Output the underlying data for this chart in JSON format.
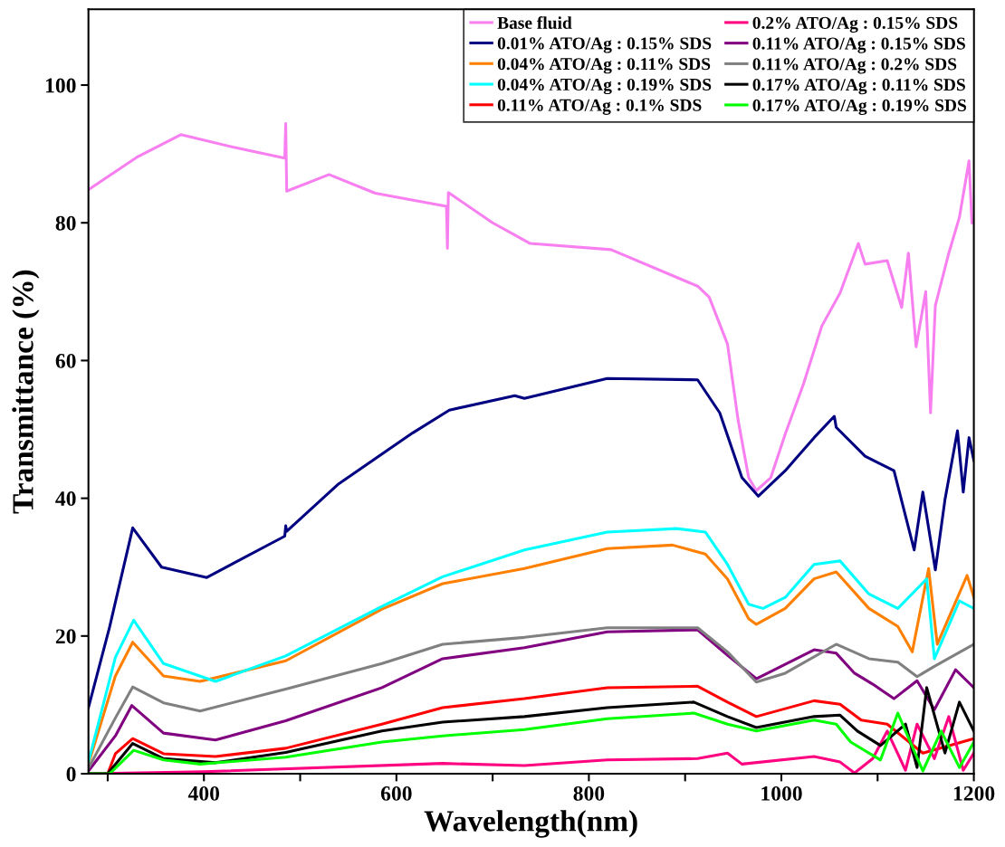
{
  "chart_data": {
    "type": "line",
    "xlabel": "Wavelength(nm)",
    "ylabel": "Transmittance (%)",
    "xlim": [
      280,
      1200
    ],
    "ylim": [
      0,
      111
    ],
    "xticks": [
      {
        "value": 300,
        "label": null
      },
      400,
      {
        "value": 500,
        "label": null
      },
      600,
      {
        "value": 700,
        "label": null
      },
      800,
      {
        "value": 900,
        "label": null
      },
      1000,
      {
        "value": 1100,
        "label": null
      },
      1200
    ],
    "yticks": [
      0,
      20,
      40,
      60,
      80,
      100
    ],
    "grid": false,
    "legend": "top right",
    "marker": "none",
    "line_style": "solid",
    "series": [
      {
        "name": "Base fluid",
        "color": "#f77ff0",
        "x": [
          280,
          330,
          376,
          430,
          484,
          485,
          486,
          530,
          578,
          652,
          653,
          654,
          700,
          739,
          823,
          913,
          925,
          944,
          955,
          966,
          974,
          989,
          1004,
          1023,
          1042,
          1061,
          1080,
          1087,
          1110,
          1125,
          1132,
          1140,
          1150,
          1155,
          1160,
          1174,
          1185,
          1195,
          1198
        ],
        "values": [
          84.8,
          89.5,
          92.8,
          91,
          89.4,
          94.4,
          84.6,
          87,
          84.3,
          82.4,
          76.3,
          84.4,
          80,
          77,
          76.1,
          70.8,
          69.2,
          62.4,
          51.4,
          43,
          41.1,
          43,
          49.3,
          56.6,
          65,
          69.8,
          77,
          74,
          74.5,
          67.7,
          75.6,
          62,
          70,
          52.4,
          68,
          75.6,
          80.8,
          89,
          80
        ]
      },
      {
        "name": "0.01% ATO/Ag : 0.15% SDS",
        "color": "#000080",
        "x": [
          280,
          302,
          326,
          356,
          403,
          484,
          485,
          486,
          540,
          617,
          655,
          723,
          733,
          819,
          913,
          936,
          959,
          976,
          1004,
          1034,
          1055,
          1057,
          1087,
          1117,
          1138,
          1147,
          1160,
          1170,
          1183,
          1189,
          1195,
          1200
        ],
        "values": [
          9.6,
          21.3,
          35.7,
          30,
          28.5,
          34.5,
          36,
          35.2,
          42.1,
          49.5,
          52.8,
          54.9,
          54.5,
          57.4,
          57.2,
          52.4,
          43,
          40.3,
          44,
          48.8,
          51.9,
          50.3,
          46.1,
          44,
          32.5,
          40.9,
          29.6,
          39.8,
          49.8,
          40.9,
          48.8,
          45.5
        ]
      },
      {
        "name": "0.04% ATO/Ag : 0.11% SDS",
        "color": "#ff8000",
        "x": [
          280,
          308,
          326,
          358,
          396,
          485,
          585,
          648,
          733,
          819,
          887,
          921,
          944,
          966,
          974,
          1004,
          1034,
          1057,
          1091,
          1121,
          1136,
          1153,
          1162,
          1193,
          1200
        ],
        "values": [
          1.4,
          14.2,
          19.1,
          14.2,
          13.4,
          16.4,
          23.9,
          27.6,
          29.8,
          32.7,
          33.2,
          31.9,
          28.3,
          22.5,
          21.7,
          24,
          28.3,
          29.3,
          24,
          21.4,
          17.7,
          29.8,
          18.8,
          28.8,
          25.6
        ]
      },
      {
        "name": "0.04% ATO/Ag : 0.19% SDS",
        "color": "#00ffff",
        "x": [
          280,
          308,
          327,
          358,
          412,
          485,
          585,
          648,
          733,
          819,
          891,
          921,
          944,
          966,
          981,
          1004,
          1034,
          1061,
          1091,
          1121,
          1151,
          1159,
          1185,
          1200
        ],
        "values": [
          1.7,
          16.9,
          22.3,
          16,
          13.4,
          17.1,
          24.3,
          28.6,
          32.5,
          35.1,
          35.6,
          35.1,
          30.4,
          24.6,
          24,
          25.6,
          30.4,
          30.9,
          26.1,
          24,
          28.3,
          16.7,
          25.1,
          24
        ]
      },
      {
        "name": "0.11% ATO/Ag : 0.1% SDS",
        "color": "#ff0000",
        "x": [
          280,
          300,
          308,
          326,
          358,
          412,
          485,
          585,
          648,
          733,
          819,
          913,
          944,
          974,
          1034,
          1061,
          1083,
          1110,
          1147,
          1200
        ],
        "values": [
          0,
          0,
          2.9,
          5.1,
          2.9,
          2.5,
          3.7,
          7.2,
          9.6,
          10.9,
          12.5,
          12.7,
          10.4,
          8.3,
          10.6,
          10.1,
          7.8,
          7.2,
          3,
          5.1
        ]
      },
      {
        "name": "0.2% ATO/Ag : 0.15% SDS",
        "color": "#ff0080",
        "x": [
          280,
          400,
          648,
          733,
          819,
          913,
          944,
          959,
          1034,
          1061,
          1076,
          1095,
          1110,
          1129,
          1141,
          1159,
          1174,
          1189,
          1200
        ],
        "values": [
          0,
          0.3,
          1.5,
          1.2,
          2,
          2.2,
          3,
          1.4,
          2.5,
          1.7,
          0.1,
          2.2,
          6.2,
          0.5,
          7.2,
          2.2,
          8.3,
          0.5,
          3
        ]
      },
      {
        "name": "0.11% ATO/Ag : 0.15% SDS",
        "color": "#800080",
        "x": [
          280,
          308,
          325,
          358,
          412,
          485,
          585,
          648,
          733,
          819,
          913,
          944,
          974,
          1034,
          1057,
          1076,
          1095,
          1117,
          1141,
          1159,
          1181,
          1200
        ],
        "values": [
          0.4,
          5.5,
          9.9,
          5.9,
          4.9,
          7.7,
          12.5,
          16.7,
          18.3,
          20.6,
          20.9,
          17.2,
          13.8,
          18,
          17.5,
          14.6,
          13,
          10.9,
          13.5,
          9.3,
          15.1,
          12.5
        ]
      },
      {
        "name": "0.11% ATO/Ag : 0.2% SDS",
        "color": "#808080",
        "x": [
          280,
          308,
          326,
          358,
          396,
          485,
          585,
          648,
          733,
          819,
          913,
          944,
          974,
          1004,
          1057,
          1091,
          1121,
          1141,
          1159,
          1200
        ],
        "values": [
          0.8,
          8.1,
          12.6,
          10.3,
          9.1,
          12.3,
          16,
          18.8,
          19.8,
          21.2,
          21.2,
          17.7,
          13.3,
          14.6,
          18.8,
          16.7,
          16.2,
          14.1,
          15.6,
          18.8
        ]
      },
      {
        "name": "0.17% ATO/Ag : 0.11% SDS",
        "color": "#000000",
        "x": [
          280,
          300,
          326,
          358,
          412,
          485,
          585,
          648,
          733,
          819,
          909,
          944,
          974,
          1034,
          1061,
          1079,
          1103,
          1129,
          1141,
          1151,
          1170,
          1185,
          1200
        ],
        "values": [
          0,
          0,
          4.4,
          2.2,
          1.6,
          3.1,
          6.2,
          7.5,
          8.3,
          9.6,
          10.4,
          8.3,
          6.7,
          8.3,
          8.5,
          6.2,
          4.1,
          7.2,
          0.9,
          12.5,
          3,
          10.4,
          6.2
        ]
      },
      {
        "name": "0.17% ATO/Ag : 0.19% SDS",
        "color": "#00ff00",
        "x": [
          280,
          302,
          327,
          358,
          396,
          485,
          585,
          648,
          733,
          819,
          909,
          944,
          974,
          1034,
          1057,
          1072,
          1103,
          1121,
          1147,
          1166,
          1185,
          1200
        ],
        "values": [
          0,
          0,
          3.4,
          2,
          1.4,
          2.4,
          4.6,
          5.5,
          6.4,
          8,
          8.8,
          7.2,
          6.2,
          7.8,
          7.2,
          4.6,
          2,
          8.8,
          0.4,
          6.2,
          0.9,
          4.6
        ]
      }
    ]
  }
}
